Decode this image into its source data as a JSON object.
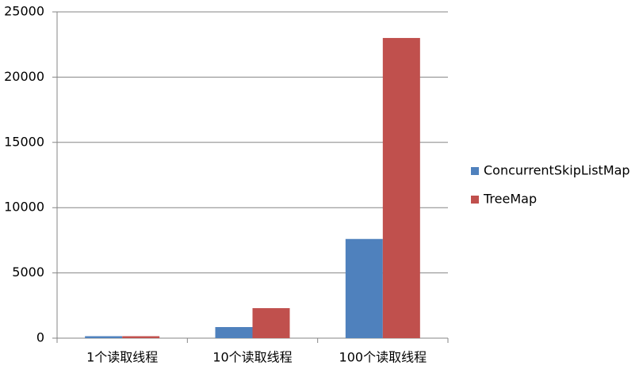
{
  "chart_data": {
    "type": "bar",
    "categories": [
      "1个读取线程",
      "10个读取线程",
      "100个读取线程"
    ],
    "series": [
      {
        "name": "ConcurrentSkipListMap",
        "color": "#4f81bd",
        "values": [
          150,
          850,
          7600
        ]
      },
      {
        "name": "TreeMap",
        "color": "#c0504d",
        "values": [
          150,
          2300,
          23000
        ]
      }
    ],
    "ylim": [
      0,
      25000
    ],
    "yticks": [
      0,
      5000,
      10000,
      15000,
      20000,
      25000
    ],
    "grid": true,
    "legend": "right"
  }
}
